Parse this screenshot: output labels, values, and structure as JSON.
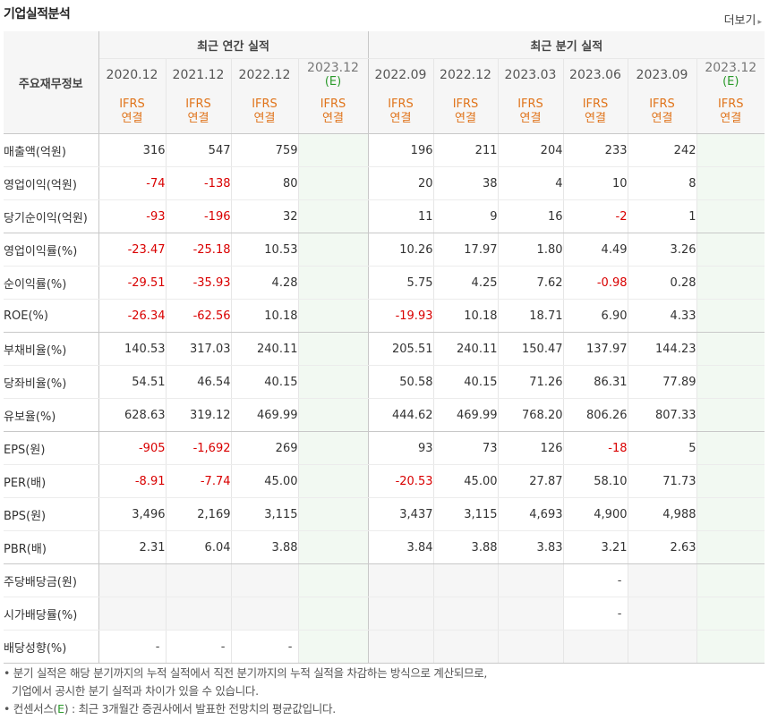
{
  "section_title": "기업실적분석",
  "more_label": "더보기",
  "more_arrow": "▸",
  "row_header_label": "주요재무정보",
  "groups": [
    {
      "label": "최근 연간 실적"
    },
    {
      "label": "최근 분기 실적"
    }
  ],
  "periods": [
    {
      "label": "2020.12",
      "est": ""
    },
    {
      "label": "2021.12",
      "est": ""
    },
    {
      "label": "2022.12",
      "est": ""
    },
    {
      "label": "2023.12",
      "est": "(E)"
    },
    {
      "label": "2022.09",
      "est": ""
    },
    {
      "label": "2022.12",
      "est": ""
    },
    {
      "label": "2023.03",
      "est": ""
    },
    {
      "label": "2023.06",
      "est": ""
    },
    {
      "label": "2023.09",
      "est": ""
    },
    {
      "label": "2023.12",
      "est": "(E)"
    }
  ],
  "ifrs_line1": "IFRS",
  "ifrs_line2": "연결",
  "rows": [
    {
      "label": "매출액(억원)",
      "values": [
        "316",
        "547",
        "759",
        "",
        "196",
        "211",
        "204",
        "233",
        "242",
        ""
      ]
    },
    {
      "label": "영업이익(억원)",
      "values": [
        "-74",
        "-138",
        "80",
        "",
        "20",
        "38",
        "4",
        "10",
        "8",
        ""
      ]
    },
    {
      "label": "당기순이익(억원)",
      "values": [
        "-93",
        "-196",
        "32",
        "",
        "11",
        "9",
        "16",
        "-2",
        "1",
        ""
      ]
    },
    {
      "label": "영업이익률(%)",
      "values": [
        "-23.47",
        "-25.18",
        "10.53",
        "",
        "10.26",
        "17.97",
        "1.80",
        "4.49",
        "3.26",
        ""
      ]
    },
    {
      "label": "순이익률(%)",
      "values": [
        "-29.51",
        "-35.93",
        "4.28",
        "",
        "5.75",
        "4.25",
        "7.62",
        "-0.98",
        "0.28",
        ""
      ]
    },
    {
      "label": "ROE(%)",
      "values": [
        "-26.34",
        "-62.56",
        "10.18",
        "",
        "-19.93",
        "10.18",
        "18.71",
        "6.90",
        "4.33",
        ""
      ]
    },
    {
      "label": "부채비율(%)",
      "values": [
        "140.53",
        "317.03",
        "240.11",
        "",
        "205.51",
        "240.11",
        "150.47",
        "137.97",
        "144.23",
        ""
      ]
    },
    {
      "label": "당좌비율(%)",
      "values": [
        "54.51",
        "46.54",
        "40.15",
        "",
        "50.58",
        "40.15",
        "71.26",
        "86.31",
        "77.89",
        ""
      ]
    },
    {
      "label": "유보율(%)",
      "values": [
        "628.63",
        "319.12",
        "469.99",
        "",
        "444.62",
        "469.99",
        "768.20",
        "806.26",
        "807.33",
        ""
      ]
    },
    {
      "label": "EPS(원)",
      "values": [
        "-905",
        "-1,692",
        "269",
        "",
        "93",
        "73",
        "126",
        "-18",
        "5",
        ""
      ]
    },
    {
      "label": "PER(배)",
      "values": [
        "-8.91",
        "-7.74",
        "45.00",
        "",
        "-20.53",
        "45.00",
        "27.87",
        "58.10",
        "71.73",
        ""
      ]
    },
    {
      "label": "BPS(원)",
      "values": [
        "3,496",
        "2,169",
        "3,115",
        "",
        "3,437",
        "3,115",
        "4,693",
        "4,900",
        "4,988",
        ""
      ]
    },
    {
      "label": "PBR(배)",
      "values": [
        "2.31",
        "6.04",
        "3.88",
        "",
        "3.84",
        "3.88",
        "3.83",
        "3.21",
        "2.63",
        ""
      ]
    },
    {
      "label": "주당배당금(원)",
      "values": [
        "",
        "",
        "",
        "",
        "",
        "",
        "",
        "-",
        "",
        ""
      ]
    },
    {
      "label": "시가배당률(%)",
      "values": [
        "",
        "",
        "",
        "",
        "",
        "",
        "",
        "-",
        "",
        ""
      ]
    },
    {
      "label": "배당성향(%)",
      "values": [
        "-",
        "-",
        "-",
        "",
        "",
        "",
        "",
        "",
        "",
        ""
      ]
    }
  ],
  "notes": {
    "line1": "• 분기 실적은 해당 분기까지의 누적 실적에서 직전 분기까지의 누적 실적을 차감하는 방식으로 계산되므로,",
    "line2": "기업에서 공시한 분기 실적과 차이가 있을 수 있습니다.",
    "line3_prefix": "• 컨센서스(",
    "line3_e": "E",
    "line3_suffix": ") : 최근 3개월간 증권사에서 발표한 전망치의 평균값입니다."
  }
}
